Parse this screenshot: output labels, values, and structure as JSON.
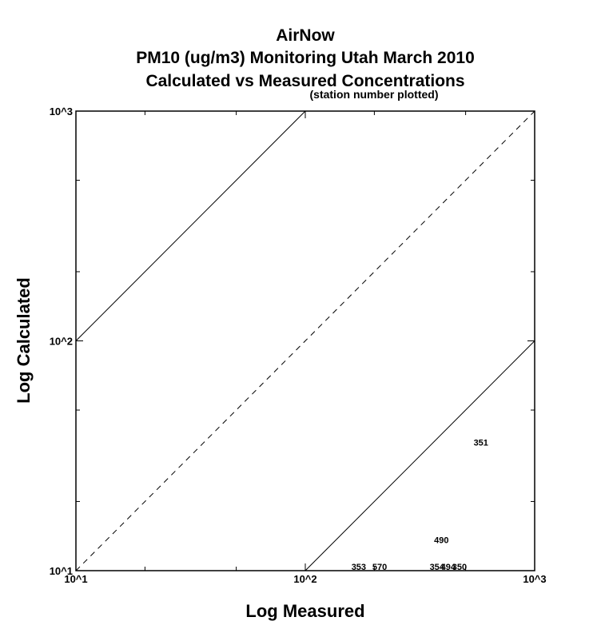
{
  "chart_data": {
    "type": "scatter",
    "title_lines": [
      "AirNow",
      "PM10 (ug/m3) Monitoring Utah March 2010",
      "Calculated vs Measured Concentrations"
    ],
    "subtitle": "(station number plotted)",
    "xlabel": "Log Measured",
    "ylabel": "Log Calculated",
    "x_scale": "log",
    "y_scale": "log",
    "xlim": [
      10,
      1000
    ],
    "ylim": [
      10,
      1000
    ],
    "x_ticks": [
      {
        "value": 10,
        "label": "10^1"
      },
      {
        "value": 100,
        "label": "10^2"
      },
      {
        "value": 1000,
        "label": "10^3"
      }
    ],
    "y_ticks": [
      {
        "value": 10,
        "label": "10^1"
      },
      {
        "value": 100,
        "label": "10^2"
      },
      {
        "value": 1000,
        "label": "10^3"
      }
    ],
    "minor_ticks": [
      20,
      50,
      200,
      500
    ],
    "grid": false,
    "reference_lines": [
      {
        "name": "1:1",
        "style": "dashed",
        "points": [
          [
            10,
            10
          ],
          [
            1000,
            1000
          ]
        ]
      },
      {
        "name": "10x over",
        "style": "solid",
        "points": [
          [
            10,
            100
          ],
          [
            100,
            1000
          ]
        ]
      },
      {
        "name": "10x under",
        "style": "solid",
        "points": [
          [
            100,
            10
          ],
          [
            1000,
            100
          ]
        ]
      }
    ],
    "points": [
      {
        "label": "351",
        "x": 583,
        "y": 35
      },
      {
        "label": "490",
        "x": 392,
        "y": 13.2
      },
      {
        "label": "353",
        "x": 171,
        "y": 10.1
      },
      {
        "label": "570",
        "x": 211,
        "y": 10.1
      },
      {
        "label": "354",
        "x": 375,
        "y": 10.1
      },
      {
        "label": "494",
        "x": 420,
        "y": 10.1
      },
      {
        "label": "350",
        "x": 470,
        "y": 10.1
      }
    ]
  }
}
